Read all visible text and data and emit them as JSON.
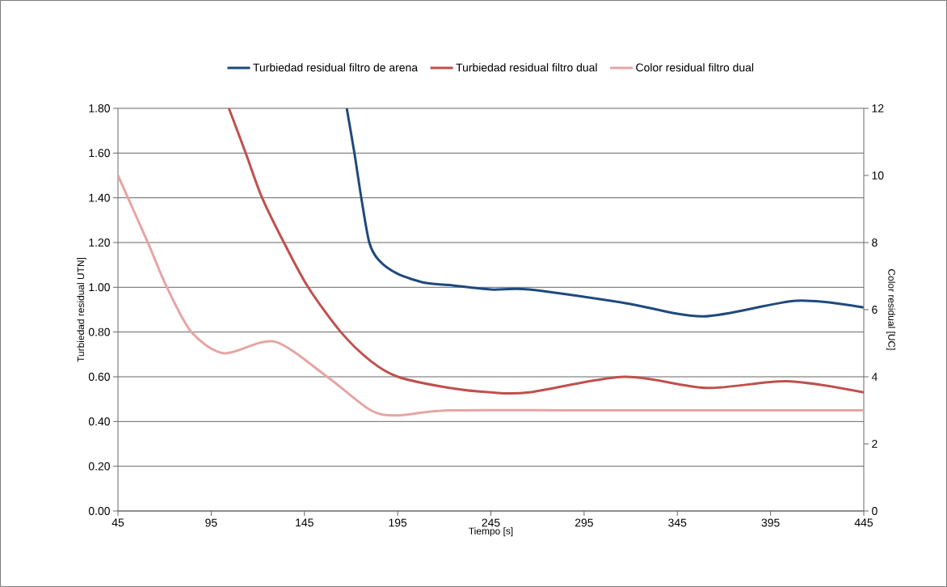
{
  "chart_data": {
    "type": "line",
    "xlabel": "Tiempo [s]",
    "ylabel": "Turbiedad residual UTN]",
    "y2label": "Color residual [UC]",
    "xlim": [
      45,
      445
    ],
    "xticks": [
      45,
      95,
      145,
      195,
      245,
      295,
      345,
      395,
      445
    ],
    "ylim": [
      0,
      1.8
    ],
    "yticks": [
      {
        "value": 0,
        "label": "0.00"
      },
      {
        "value": 0.2,
        "label": "0.20"
      },
      {
        "value": 0.4,
        "label": "0.40"
      },
      {
        "value": 0.6,
        "label": "0.60"
      },
      {
        "value": 0.8,
        "label": "0.80"
      },
      {
        "value": 1.0,
        "label": "1.00"
      },
      {
        "value": 1.2,
        "label": "1.20"
      },
      {
        "value": 1.4,
        "label": "1.40"
      },
      {
        "value": 1.6,
        "label": "1.60"
      },
      {
        "value": 1.8,
        "label": "1.80"
      }
    ],
    "y2lim": [
      0,
      12
    ],
    "y2ticks": [
      0,
      2,
      4,
      6,
      8,
      10,
      12
    ],
    "grid": "y",
    "legend": "top",
    "marker": "none",
    "line_style": "solid",
    "series": [
      {
        "name": "Turbiedad residual filtro de arena",
        "color": "#1f497d",
        "x": [
          167.7,
          171.8,
          175.5,
          179.8,
          185,
          195,
          209.7,
          222.8,
          245,
          265.5,
          316.6,
          359,
          408.7,
          445
        ],
        "values": [
          1.8,
          1.6,
          1.4,
          1.2,
          1.12,
          1.06,
          1.02,
          1.01,
          0.99,
          0.99,
          0.93,
          0.87,
          0.94,
          0.91
        ]
      },
      {
        "name": "Turbiedad residual filtro dual",
        "color": "#c0504d",
        "x": [
          104.5,
          113.5,
          122.3,
          134,
          147,
          164.5,
          180.6,
          195.1,
          222.8,
          245,
          265.5,
          316.6,
          360.5,
          404,
          445
        ],
        "values": [
          1.8,
          1.6,
          1.4,
          1.2,
          1.0,
          0.8,
          0.67,
          0.6,
          0.55,
          0.53,
          0.53,
          0.6,
          0.55,
          0.58,
          0.53
        ]
      },
      {
        "name": "Color residual filtro dual",
        "color": "#e6a5a3",
        "axis": "y2",
        "x": [
          45,
          61,
          71.2,
          84.4,
          102,
          128.8,
          157.2,
          180.6,
          195.1,
          222.8,
          300,
          445
        ],
        "values": [
          10.0,
          8.0,
          6.67,
          5.33,
          4.7,
          5.05,
          4.0,
          3.0,
          2.85,
          3.0,
          3.0,
          3.0
        ]
      }
    ]
  }
}
